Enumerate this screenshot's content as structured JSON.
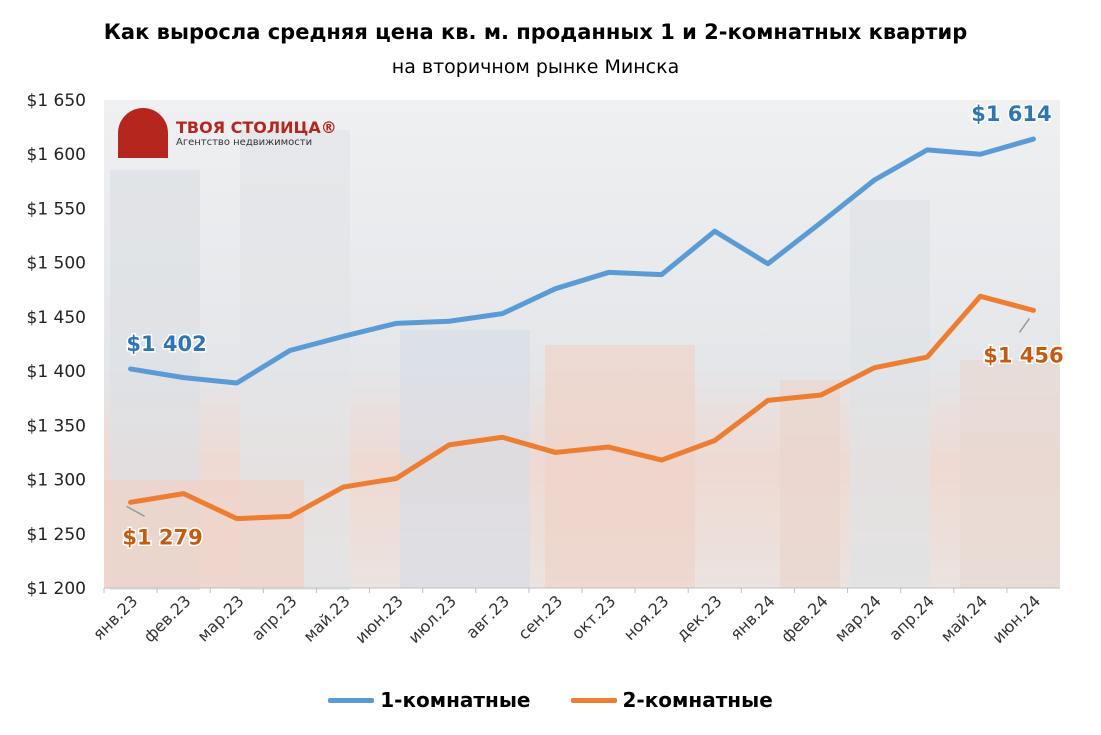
{
  "chart_data": {
    "type": "line",
    "title": "Как выросла средняя цена кв. м. проданных 1 и 2-комнатных квартир",
    "subtitle": "на вторичном рынке Минска",
    "categories": [
      "янв.23",
      "фев.23",
      "мар.23",
      "апр.23",
      "май.23",
      "июн.23",
      "июл.23",
      "авг.23",
      "сен.23",
      "окт.23",
      "ноя.23",
      "дек.23",
      "янв.24",
      "фев.24",
      "мар.24",
      "апр.24",
      "май.24",
      "июн.24"
    ],
    "ylim": [
      1200,
      1650
    ],
    "yticks": [
      1200,
      1250,
      1300,
      1350,
      1400,
      1450,
      1500,
      1550,
      1600,
      1650
    ],
    "ytick_labels": [
      "$1 200",
      "$1 250",
      "$1 300",
      "$1 350",
      "$1 400",
      "$1 450",
      "$1 500",
      "$1 550",
      "$1 600",
      "$1 650"
    ],
    "grid": false,
    "legend_placement": "bottom",
    "series": [
      {
        "name": "1-комнатные",
        "color": "#5b9bd5",
        "label_color": "#2e75b6",
        "values": [
          1402,
          1394,
          1389,
          1419,
          1432,
          1444,
          1446,
          1453,
          1476,
          1491,
          1489,
          1529,
          1499,
          1537,
          1576,
          1604,
          1600,
          1614
        ],
        "annotations": [
          {
            "index": 0,
            "text": "$1 402"
          },
          {
            "index": 17,
            "text": "$1 614"
          }
        ]
      },
      {
        "name": "2-комнатные",
        "color": "#ed7d31",
        "label_color": "#c55a11",
        "values": [
          1279,
          1287,
          1264,
          1266,
          1293,
          1301,
          1332,
          1339,
          1325,
          1330,
          1318,
          1336,
          1373,
          1378,
          1403,
          1413,
          1469,
          1456
        ],
        "annotations": [
          {
            "index": 0,
            "text": "$1 279"
          },
          {
            "index": 17,
            "text": "$1 456"
          }
        ]
      }
    ]
  },
  "logo": {
    "name": "ТВОЯ СТОЛИЦА®",
    "subtitle": "Агентство недвижимости"
  }
}
